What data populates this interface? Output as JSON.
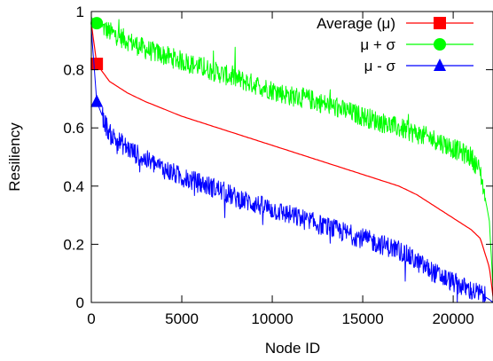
{
  "chart_data": {
    "type": "line",
    "title": "",
    "xlabel": "Node ID",
    "ylabel": "Resiliency",
    "xlim": [
      0,
      22200
    ],
    "ylim": [
      0,
      1
    ],
    "xticks": [
      0,
      5000,
      10000,
      15000,
      20000
    ],
    "xtick_labels": [
      "0",
      "5000",
      "10000",
      "15000",
      "20000"
    ],
    "yticks": [
      0,
      0.2,
      0.4,
      0.6,
      0.8,
      1
    ],
    "ytick_labels": [
      "0",
      "0.2",
      "0.4",
      "0.6",
      "0.8",
      "1"
    ],
    "grid": false,
    "legend_position": "top-right",
    "series": [
      {
        "name": "Average (μ)",
        "color": "#ff0000",
        "marker": "square",
        "marker_at": [
          300,
          0.82
        ],
        "x": [
          0,
          300,
          1000,
          2000,
          3000,
          4000,
          5000,
          6000,
          7000,
          8000,
          9000,
          10000,
          11000,
          12000,
          13000,
          14000,
          15000,
          16000,
          17000,
          18000,
          19000,
          20000,
          21000,
          21500,
          22000,
          22200
        ],
        "values": [
          0.96,
          0.82,
          0.76,
          0.72,
          0.69,
          0.665,
          0.64,
          0.62,
          0.6,
          0.58,
          0.56,
          0.54,
          0.52,
          0.5,
          0.48,
          0.46,
          0.44,
          0.42,
          0.4,
          0.37,
          0.33,
          0.29,
          0.25,
          0.22,
          0.12,
          0.02
        ]
      },
      {
        "name": "μ + σ",
        "color": "#00ff00",
        "marker": "circle",
        "marker_at": [
          300,
          0.96
        ],
        "x": [
          0,
          300,
          1000,
          2000,
          3000,
          4000,
          5000,
          6000,
          7000,
          8000,
          9000,
          10000,
          11000,
          12000,
          13000,
          14000,
          15000,
          16000,
          17000,
          18000,
          19000,
          20000,
          21000,
          21500,
          22000,
          22200
        ],
        "values": [
          0.98,
          0.96,
          0.93,
          0.9,
          0.87,
          0.85,
          0.83,
          0.81,
          0.79,
          0.77,
          0.75,
          0.73,
          0.71,
          0.7,
          0.68,
          0.66,
          0.64,
          0.62,
          0.6,
          0.58,
          0.56,
          0.53,
          0.5,
          0.45,
          0.28,
          0.05
        ]
      },
      {
        "name": "μ - σ",
        "color": "#0000ff",
        "marker": "triangle",
        "marker_at": [
          300,
          0.69
        ],
        "x": [
          0,
          300,
          1000,
          2000,
          3000,
          4000,
          5000,
          6000,
          7000,
          8000,
          9000,
          10000,
          11000,
          12000,
          13000,
          14000,
          15000,
          16000,
          17000,
          18000,
          19000,
          20000,
          21000,
          21500,
          22000,
          22200
        ],
        "values": [
          0.94,
          0.69,
          0.58,
          0.53,
          0.49,
          0.46,
          0.43,
          0.41,
          0.39,
          0.36,
          0.34,
          0.32,
          0.3,
          0.28,
          0.26,
          0.24,
          0.22,
          0.2,
          0.18,
          0.14,
          0.1,
          0.07,
          0.04,
          0.03,
          0.01,
          0.0
        ]
      }
    ]
  }
}
